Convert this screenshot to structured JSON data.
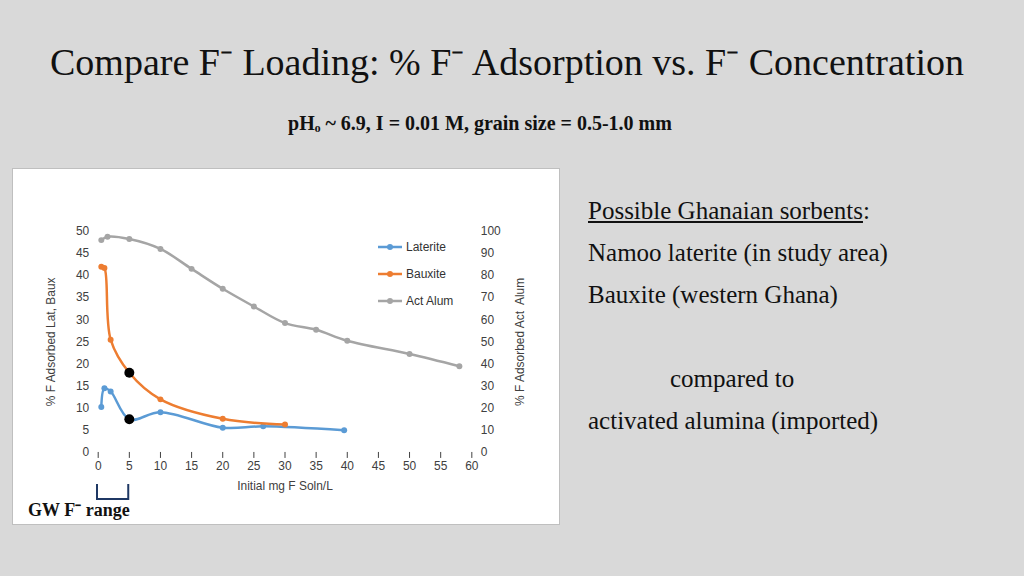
{
  "chart_data": {
    "type": "line",
    "title": "Compare F⁻ Loading: % F⁻ Adsorption vs. F⁻ Concentration",
    "subtitle": "pHₒ ~ 6.9, I = 0.01 M, grain size = 0.5-1.0 mm",
    "xlabel": "Initial mg F Soln/L",
    "ylabel": "% F Adsorbed Lat, Baux",
    "y2label": "% F Adsorbed Act  Alum",
    "xlim": [
      0,
      60
    ],
    "xticks": [
      0,
      5,
      10,
      15,
      20,
      25,
      30,
      35,
      40,
      45,
      50,
      55,
      60
    ],
    "ylim": [
      0,
      50
    ],
    "yticks": [
      0,
      5,
      10,
      15,
      20,
      25,
      30,
      35,
      40,
      45,
      50
    ],
    "y2lim": [
      0,
      100
    ],
    "y2ticks": [
      0,
      10,
      20,
      30,
      40,
      50,
      60,
      70,
      80,
      90,
      100
    ],
    "legend": "top-right",
    "marker": "circle",
    "series": [
      {
        "name": "Laterite",
        "color": "#5b9bd5",
        "axis": "y",
        "x": [
          0.5,
          1,
          2,
          5,
          10,
          20,
          26.5,
          39.5
        ],
        "values": [
          10.3,
          14.5,
          13.8,
          7.5,
          9.1,
          5.6,
          5.9,
          5.0
        ]
      },
      {
        "name": "Bauxite",
        "color": "#ed7d31",
        "axis": "y",
        "x": [
          0.5,
          1,
          2,
          5,
          10,
          20,
          30
        ],
        "values": [
          42,
          41.7,
          25.5,
          18,
          12,
          7.6,
          6.3
        ]
      },
      {
        "name": "Act Alum",
        "color": "#a5a5a5",
        "axis": "y2",
        "x": [
          0.5,
          1.5,
          5,
          10,
          15,
          20,
          25,
          30,
          35,
          40,
          50,
          58
        ],
        "values": [
          96,
          97.5,
          96.5,
          92,
          83,
          74,
          66,
          58.5,
          55.5,
          50.5,
          44.5,
          39
        ]
      }
    ],
    "highlight": {
      "x": 5,
      "color": "#000000"
    },
    "annotations": [
      {
        "text": "GW F⁻ range",
        "x": [
          0,
          5
        ]
      }
    ]
  },
  "side_text": {
    "heading": "Possible Ghanaian sorbents",
    "heading_suffix": ":",
    "lines": [
      "Namoo laterite (in study area)",
      "Bauxite (western Ghana)"
    ],
    "connector": "compared to",
    "last": "activated alumina (imported)"
  }
}
